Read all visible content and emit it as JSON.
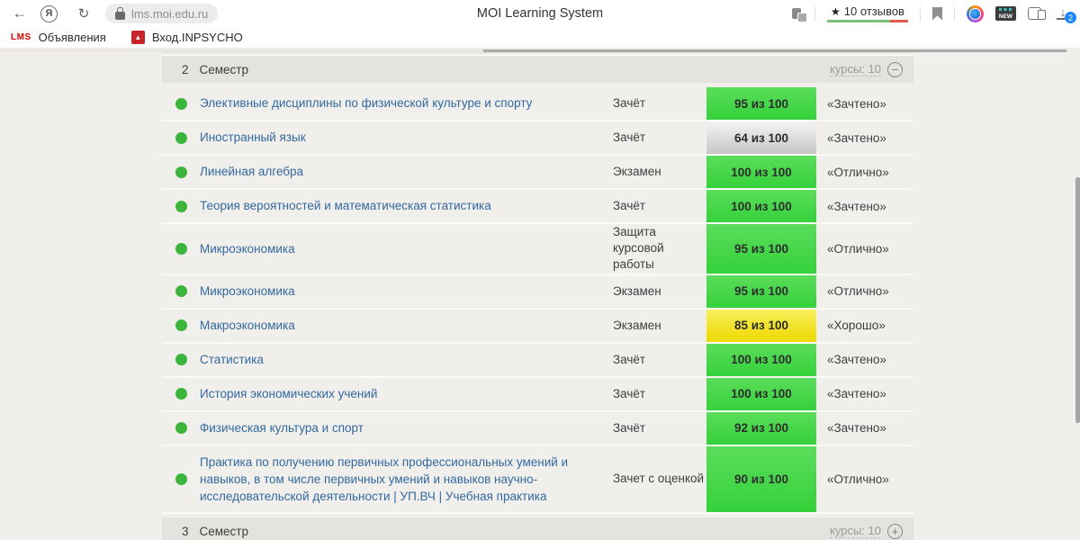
{
  "browser": {
    "yandex_letter": "Я",
    "url": "lms.moi.edu.ru",
    "page_title": "MOI Learning System",
    "reviews_star": "★",
    "reviews_label": "10 отзывов",
    "new_badge_label": "NEW",
    "downloads_count": "2",
    "download_arrow": "↓",
    "back_arrow": "←",
    "reload_glyph": "↻"
  },
  "bookmarks_bar": {
    "items": [
      {
        "icon_text": "LMS",
        "label": "Объявления"
      },
      {
        "icon_text": "▲",
        "label": "Вход.INPSYCHO"
      }
    ]
  },
  "table": {
    "header": {
      "number": "2",
      "title": "Семестр",
      "courses": "курсы: 10",
      "toggle_glyph": "−"
    },
    "footer": {
      "number": "3",
      "title": "Семестр",
      "courses": "курсы: 10",
      "toggle_glyph": "+"
    },
    "rows": [
      {
        "name": "Элективные дисциплины по физической культуре и спорту",
        "type": "Зачёт",
        "score": "95 из 100",
        "score_color": "green",
        "grade": "«Зачтено»"
      },
      {
        "name": "Иностранный язык",
        "type": "Зачёт",
        "score": "64 из 100",
        "score_color": "gray",
        "grade": "«Зачтено»"
      },
      {
        "name": "Линейная алгебра",
        "type": "Экзамен",
        "score": "100 из 100",
        "score_color": "green",
        "grade": "«Отлично»"
      },
      {
        "name": "Теория вероятностей и математическая статистика",
        "type": "Зачёт",
        "score": "100 из 100",
        "score_color": "green",
        "grade": "«Зачтено»"
      },
      {
        "name": "Микроэкономика",
        "type": "Защита курсовой работы",
        "score": "95 из 100",
        "score_color": "green",
        "grade": "«Отлично»"
      },
      {
        "name": "Микроэкономика",
        "type": "Экзамен",
        "score": "95 из 100",
        "score_color": "green",
        "grade": "«Отлично»"
      },
      {
        "name": "Макроэкономика",
        "type": "Экзамен",
        "score": "85 из 100",
        "score_color": "yellow",
        "grade": "«Хорошо»"
      },
      {
        "name": "Статистика",
        "type": "Зачёт",
        "score": "100 из 100",
        "score_color": "green",
        "grade": "«Зачтено»"
      },
      {
        "name": "История экономических учений",
        "type": "Зачёт",
        "score": "100 из 100",
        "score_color": "green",
        "grade": "«Зачтено»"
      },
      {
        "name": "Физическая культура и спорт",
        "type": "Зачёт",
        "score": "92 из 100",
        "score_color": "green",
        "grade": "«Зачтено»"
      },
      {
        "name": "Практика по получению первичных профессиональных умений и навыков, в том числе первичных умений и навыков научно-исследовательской деятельности | УП.ВЧ | Учебная практика",
        "type": "Зачет с оценкой",
        "score": "90 из 100",
        "score_color": "green",
        "grade": "«Отлично»"
      }
    ]
  },
  "colors": {
    "status_dot": "#3bb53b",
    "link": "#33699e",
    "reviews_bar_green": "#7cbf7c",
    "reviews_bar_red": "#e2574d",
    "download_badge_blue": "#1f86ff",
    "badge_green": "#46d64b",
    "badge_gray": "#d9d9d8",
    "badge_yellow": "#f2e416"
  }
}
